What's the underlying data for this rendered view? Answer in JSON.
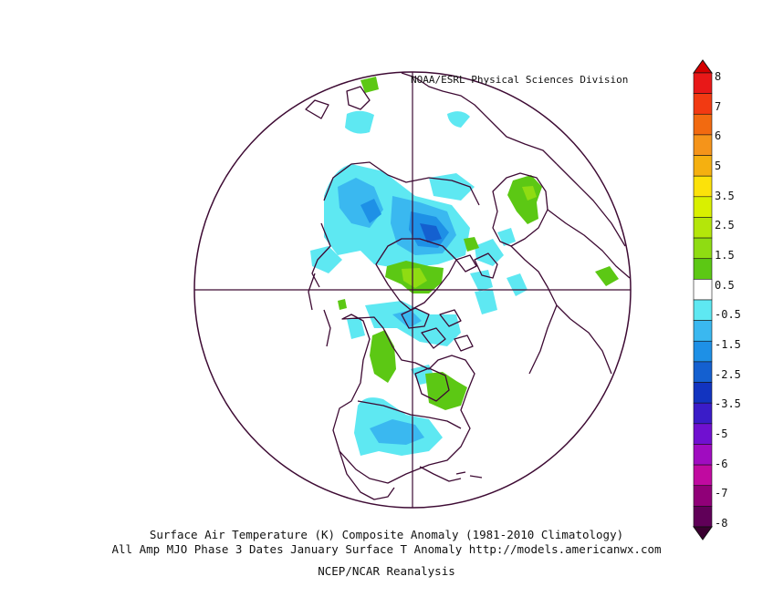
{
  "credit": "NOAA/ESRL Physical Sciences Division",
  "caption": {
    "line1": "Surface Air Temperature (K) Composite Anomaly (1981-2010 Climatology)",
    "line2": "All Amp MJO Phase 3 Dates January Surface T Anomaly http://models.americanwx.com",
    "line3": "NCEP/NCAR Reanalysis"
  },
  "colorbar": {
    "labels": [
      "8",
      "7",
      "6",
      "5",
      "3.5",
      "2.5",
      "1.5",
      "0.5",
      "-0.5",
      "-1.5",
      "-2.5",
      "-3.5",
      "-5",
      "-6",
      "-7",
      "-8"
    ],
    "top_color": "#d40000",
    "bottom_color": "#3a0030",
    "bands": [
      "#e81818",
      "#f23a12",
      "#f26a10",
      "#f5941a",
      "#f5b010",
      "#fce20a",
      "#d9f000",
      "#b4e60a",
      "#8fdc12",
      "#5cc814",
      "#ffffff",
      "#5ee8f2",
      "#3ab8f0",
      "#1e90e6",
      "#1460d0",
      "#1234c0",
      "#3a1cc8",
      "#7010d0",
      "#a00cc0",
      "#c00aa0",
      "#900078",
      "#600058"
    ]
  },
  "map": {
    "projection": "north-polar-stereographic",
    "line_color": "#3d0a33",
    "anomaly_colors": {
      "light_cyan": "#5ee8f2",
      "blue1": "#3ab8f0",
      "blue2": "#1e90e6",
      "blue3": "#1460d0",
      "green1": "#5cc814",
      "green2": "#8fdc12"
    }
  }
}
